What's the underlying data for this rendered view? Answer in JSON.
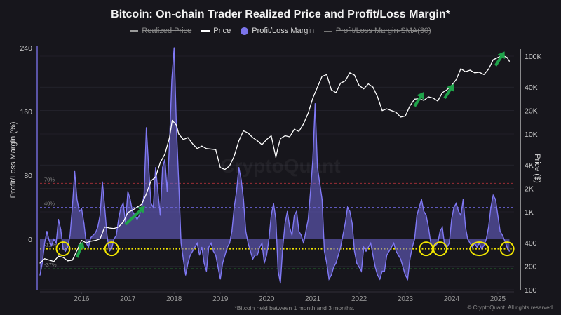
{
  "chart_data": {
    "type": "line",
    "title": "Bitcoin: On-chain Trader Realized Price and Profit/Loss Margin*",
    "legend": [
      {
        "label": "Realized Price",
        "style": "line",
        "color": "#9a9a9a",
        "hidden": true
      },
      {
        "label": "Price",
        "style": "line",
        "color": "#ffffff",
        "hidden": false
      },
      {
        "label": "Profit/Loss Margin",
        "style": "dot",
        "color": "#7b74ea",
        "hidden": false
      },
      {
        "label": "Profit/Loss Margin-SMA(30)",
        "style": "line",
        "color": "#777777",
        "hidden": true
      }
    ],
    "legend_position": "top-center",
    "x_ticks": [
      "2016",
      "2017",
      "2018",
      "2019",
      "2020",
      "2021",
      "2022",
      "2023",
      "2024",
      "2025"
    ],
    "x_range": [
      2015.1,
      2025.35
    ],
    "left_axis": {
      "label": "Profit/Loss Margin (%)",
      "ticks": [
        0,
        80,
        160,
        240
      ],
      "ylim": [
        -62,
        245
      ]
    },
    "right_axis": {
      "label": "Price ($)",
      "scale": "log",
      "ticks": [
        100,
        200,
        400,
        1000,
        2000,
        4000,
        10000,
        20000,
        40000,
        100000
      ],
      "tick_labels": [
        "100",
        "200",
        "400",
        "1K",
        "2K",
        "4K",
        "10K",
        "20K",
        "40K",
        "100K"
      ],
      "ylim": [
        100,
        130000
      ]
    },
    "reference_lines": [
      {
        "label": "70%",
        "value": 70,
        "color": "#b0333a"
      },
      {
        "label": "40%",
        "value": 40,
        "color": "#6b64d8"
      },
      {
        "label": "-12%",
        "value": -12,
        "color": "#f2e600",
        "style": "dotted"
      },
      {
        "label": "-37%",
        "value": -37,
        "color": "#2e9a3a"
      }
    ],
    "annotations": {
      "yellow_circles_at_years": [
        2015.6,
        2016.65,
        2023.45,
        2023.75,
        2024.6,
        2025.2
      ],
      "green_arrows_at_years": [
        2015.9,
        2016.95,
        2023.2,
        2023.85,
        2024.95
      ]
    },
    "series": [
      {
        "name": "Price",
        "axis": "right",
        "x": [
          2015.1,
          2015.2,
          2015.3,
          2015.4,
          2015.5,
          2015.6,
          2015.7,
          2015.8,
          2015.9,
          2016.0,
          2016.1,
          2016.2,
          2016.3,
          2016.4,
          2016.5,
          2016.6,
          2016.7,
          2016.8,
          2016.9,
          2017.0,
          2017.1,
          2017.2,
          2017.3,
          2017.4,
          2017.5,
          2017.6,
          2017.7,
          2017.8,
          2017.9,
          2017.96,
          2018.05,
          2018.1,
          2018.2,
          2018.3,
          2018.4,
          2018.5,
          2018.6,
          2018.7,
          2018.8,
          2018.9,
          2019.0,
          2019.1,
          2019.2,
          2019.3,
          2019.4,
          2019.5,
          2019.6,
          2019.7,
          2019.8,
          2019.9,
          2020.0,
          2020.1,
          2020.2,
          2020.25,
          2020.3,
          2020.4,
          2020.5,
          2020.6,
          2020.7,
          2020.8,
          2020.9,
          2021.0,
          2021.1,
          2021.2,
          2021.3,
          2021.4,
          2021.5,
          2021.6,
          2021.7,
          2021.8,
          2021.9,
          2022.0,
          2022.1,
          2022.2,
          2022.3,
          2022.4,
          2022.5,
          2022.6,
          2022.7,
          2022.8,
          2022.9,
          2023.0,
          2023.1,
          2023.2,
          2023.3,
          2023.4,
          2023.5,
          2023.6,
          2023.7,
          2023.8,
          2023.9,
          2024.0,
          2024.1,
          2024.2,
          2024.3,
          2024.4,
          2024.5,
          2024.6,
          2024.7,
          2024.8,
          2024.9,
          2025.0,
          2025.1,
          2025.2,
          2025.25
        ],
        "values": [
          220,
          250,
          240,
          230,
          270,
          260,
          235,
          240,
          320,
          430,
          400,
          420,
          430,
          450,
          640,
          620,
          610,
          640,
          740,
          980,
          1050,
          1150,
          1250,
          1700,
          2500,
          2800,
          4300,
          5500,
          9000,
          15000,
          13000,
          10000,
          8500,
          9000,
          7500,
          6500,
          7000,
          6500,
          6400,
          6300,
          3700,
          3500,
          3900,
          5200,
          8200,
          11000,
          10300,
          9000,
          8200,
          7300,
          8500,
          9500,
          5000,
          6800,
          8700,
          9500,
          9200,
          11500,
          10800,
          13500,
          18500,
          29000,
          40000,
          55000,
          58000,
          37000,
          34000,
          45000,
          48000,
          61000,
          57000,
          42000,
          38000,
          44000,
          40000,
          30000,
          20000,
          21000,
          20000,
          19000,
          16500,
          17000,
          23000,
          28000,
          28500,
          27000,
          30000,
          29000,
          26500,
          34000,
          37000,
          42000,
          50000,
          69000,
          63000,
          66000,
          61000,
          62000,
          58000,
          68000,
          90000,
          96000,
          102000,
          96000,
          86000
        ]
      },
      {
        "name": "Profit/Loss Margin",
        "axis": "left",
        "unit": "%",
        "x": [
          2015.1,
          2015.15,
          2015.2,
          2015.25,
          2015.3,
          2015.35,
          2015.4,
          2015.45,
          2015.5,
          2015.55,
          2015.6,
          2015.65,
          2015.7,
          2015.75,
          2015.8,
          2015.85,
          2015.9,
          2015.95,
          2016.0,
          2016.05,
          2016.1,
          2016.15,
          2016.2,
          2016.25,
          2016.3,
          2016.35,
          2016.4,
          2016.45,
          2016.5,
          2016.55,
          2016.6,
          2016.65,
          2016.7,
          2016.75,
          2016.8,
          2016.85,
          2016.9,
          2016.95,
          2017.0,
          2017.05,
          2017.1,
          2017.15,
          2017.2,
          2017.25,
          2017.3,
          2017.35,
          2017.4,
          2017.45,
          2017.5,
          2017.55,
          2017.6,
          2017.65,
          2017.7,
          2017.75,
          2017.8,
          2017.85,
          2017.9,
          2017.95,
          2018.0,
          2018.05,
          2018.1,
          2018.15,
          2018.2,
          2018.25,
          2018.3,
          2018.35,
          2018.4,
          2018.45,
          2018.5,
          2018.55,
          2018.6,
          2018.65,
          2018.7,
          2018.75,
          2018.8,
          2018.85,
          2018.9,
          2018.95,
          2019.0,
          2019.05,
          2019.1,
          2019.15,
          2019.2,
          2019.25,
          2019.3,
          2019.35,
          2019.4,
          2019.45,
          2019.5,
          2019.55,
          2019.6,
          2019.65,
          2019.7,
          2019.75,
          2019.8,
          2019.85,
          2019.9,
          2019.95,
          2020.0,
          2020.05,
          2020.1,
          2020.15,
          2020.2,
          2020.25,
          2020.3,
          2020.35,
          2020.4,
          2020.45,
          2020.5,
          2020.55,
          2020.6,
          2020.65,
          2020.7,
          2020.75,
          2020.8,
          2020.85,
          2020.9,
          2020.95,
          2021.0,
          2021.05,
          2021.1,
          2021.15,
          2021.2,
          2021.25,
          2021.3,
          2021.35,
          2021.4,
          2021.45,
          2021.5,
          2021.55,
          2021.6,
          2021.65,
          2021.7,
          2021.75,
          2021.8,
          2021.85,
          2021.9,
          2021.95,
          2022.0,
          2022.05,
          2022.1,
          2022.15,
          2022.2,
          2022.25,
          2022.3,
          2022.35,
          2022.4,
          2022.45,
          2022.5,
          2022.55,
          2022.6,
          2022.65,
          2022.7,
          2022.75,
          2022.8,
          2022.85,
          2022.9,
          2022.95,
          2023.0,
          2023.05,
          2023.1,
          2023.15,
          2023.2,
          2023.25,
          2023.3,
          2023.35,
          2023.4,
          2023.45,
          2023.5,
          2023.55,
          2023.6,
          2023.65,
          2023.7,
          2023.75,
          2023.8,
          2023.85,
          2023.9,
          2023.95,
          2024.0,
          2024.05,
          2024.1,
          2024.15,
          2024.2,
          2024.25,
          2024.3,
          2024.35,
          2024.4,
          2024.45,
          2024.5,
          2024.55,
          2024.6,
          2024.65,
          2024.7,
          2024.75,
          2024.8,
          2024.85,
          2024.9,
          2024.95,
          2025.0,
          2025.05,
          2025.1,
          2025.15,
          2025.2,
          2025.25
        ],
        "values": [
          -45,
          -30,
          -5,
          10,
          -2,
          -8,
          0,
          -5,
          25,
          12,
          -12,
          -15,
          -10,
          5,
          40,
          85,
          50,
          35,
          38,
          20,
          -5,
          -10,
          2,
          5,
          8,
          15,
          30,
          72,
          40,
          5,
          -15,
          -12,
          0,
          5,
          25,
          40,
          45,
          20,
          60,
          50,
          35,
          30,
          25,
          30,
          40,
          55,
          140,
          90,
          45,
          40,
          90,
          60,
          30,
          90,
          100,
          60,
          120,
          200,
          240,
          140,
          70,
          -5,
          -25,
          -45,
          -30,
          -20,
          -15,
          -10,
          -5,
          -20,
          -10,
          -30,
          -40,
          -10,
          -5,
          -15,
          -20,
          -35,
          -50,
          -30,
          -20,
          -10,
          -5,
          10,
          40,
          60,
          90,
          75,
          50,
          10,
          -5,
          -15,
          -25,
          -20,
          -20,
          -10,
          -5,
          -30,
          -20,
          0,
          30,
          45,
          25,
          -40,
          -55,
          -10,
          20,
          35,
          15,
          5,
          30,
          35,
          10,
          5,
          -5,
          10,
          25,
          60,
          100,
          170,
          90,
          70,
          50,
          -15,
          -30,
          -50,
          -45,
          -35,
          -30,
          -20,
          -10,
          5,
          20,
          40,
          35,
          20,
          -15,
          -30,
          -35,
          -40,
          -10,
          -15,
          -10,
          -5,
          -20,
          -35,
          -45,
          -50,
          -40,
          -40,
          -20,
          -15,
          -10,
          -5,
          -15,
          -20,
          -25,
          -35,
          -45,
          -50,
          -25,
          -10,
          0,
          30,
          40,
          50,
          35,
          30,
          15,
          -5,
          -10,
          -8,
          -5,
          10,
          15,
          -8,
          -10,
          -5,
          25,
          40,
          45,
          35,
          30,
          50,
          15,
          0,
          -5,
          -10,
          -5,
          -10,
          -5,
          -12,
          -8,
          0,
          15,
          40,
          55,
          50,
          30,
          10,
          5,
          -2,
          -10,
          -15
        ]
      }
    ]
  },
  "footnote": "*Bitcoin held between 1 month and 3 months.",
  "copyright": "© CryptoQuant. All rights reserved",
  "watermark": "CryptoQuant"
}
